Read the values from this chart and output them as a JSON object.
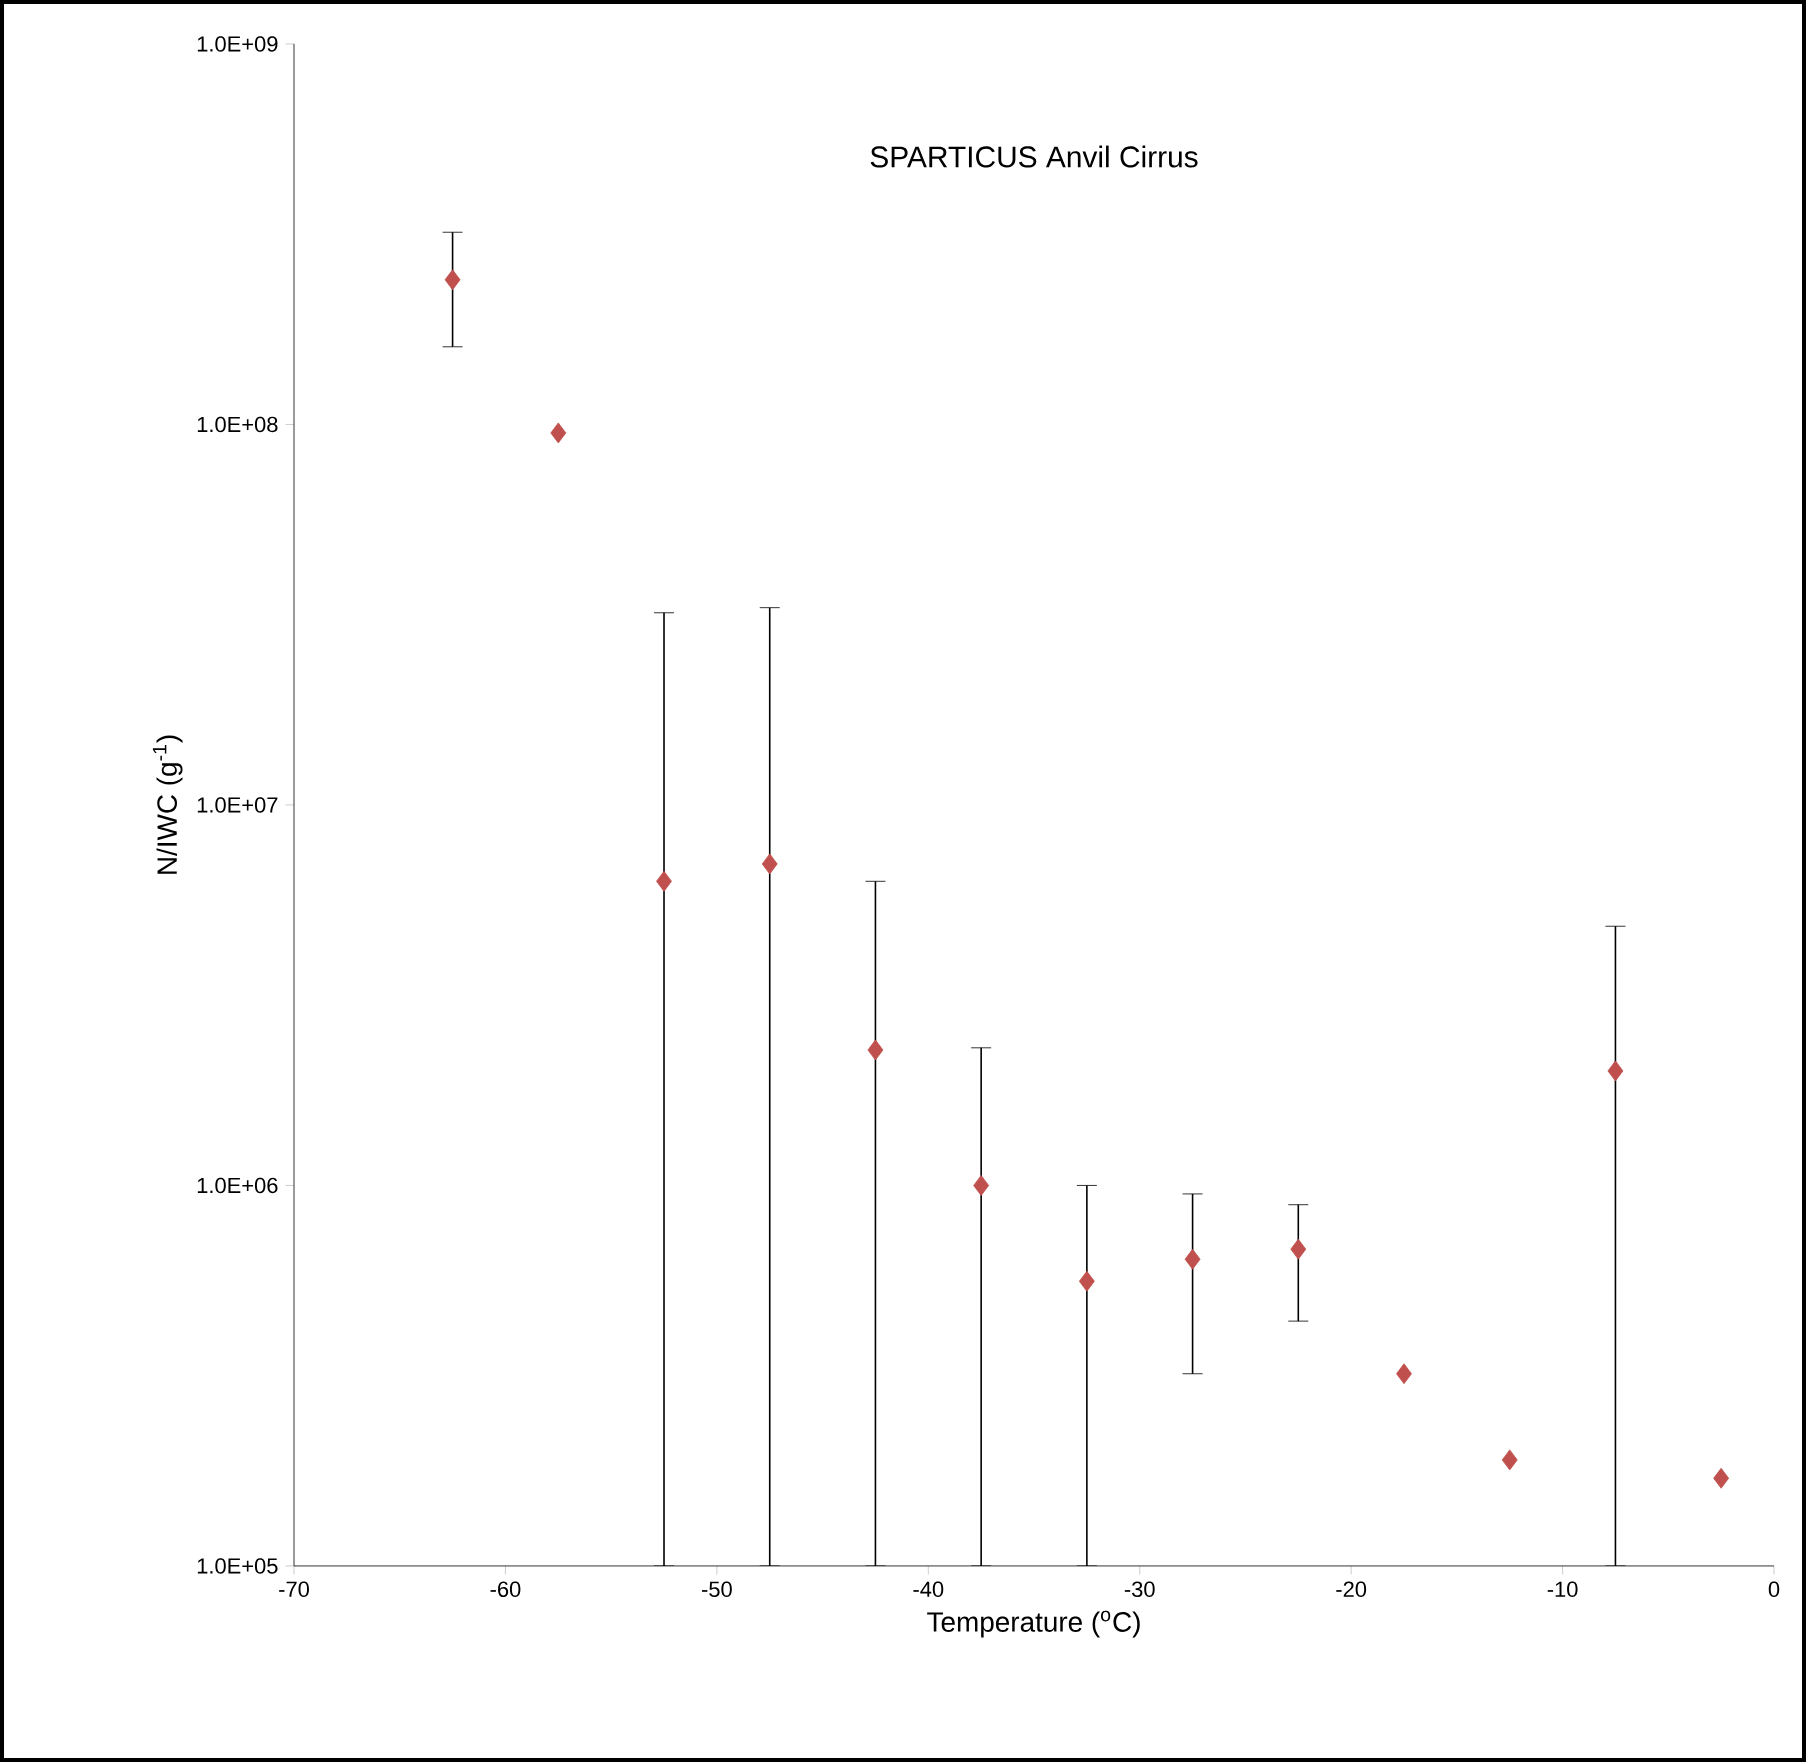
{
  "chart_data": {
    "type": "scatter",
    "title": "SPARTICUS Anvil Cirrus",
    "xlabel": "Temperature ($^{o}$C)",
    "ylabel": "N/IWC (g$^{-1}$)",
    "x": [
      -62.5,
      -57.5,
      -52.5,
      -47.5,
      -42.5,
      -37.5,
      -32.5,
      -27.5,
      -22.5,
      -17.5,
      -12.5,
      -7.5,
      -2.5
    ],
    "values": [
      240000000,
      95000000,
      6300000,
      7000000,
      2270000,
      1000000,
      560000,
      640000,
      680000,
      320000,
      190000,
      2000000,
      170000
    ],
    "errors": [
      [
        160000000,
        320000000
      ],
      null,
      [
        100000,
        32000000
      ],
      [
        100000,
        33000000
      ],
      [
        100000,
        6300000
      ],
      [
        100000,
        2300000
      ],
      [
        100000,
        1000000
      ],
      [
        320000,
        950000
      ],
      [
        440000,
        890000
      ],
      null,
      null,
      [
        100000,
        4800000
      ],
      null
    ],
    "color": "#c0504d",
    "marker": "diamond",
    "log": "y",
    "xlim": [
      -70,
      0
    ],
    "ylim": [
      100000,
      1000000000
    ],
    "xticks": [
      -70,
      -60,
      -50,
      -40,
      -30,
      -20,
      -10,
      0
    ],
    "yticks": [
      {
        "value": 100000,
        "label": "1.0E+05"
      },
      {
        "value": 1000000,
        "label": "1.0E+06"
      },
      {
        "value": 10000000,
        "label": "1.0E+07"
      },
      {
        "value": 100000000,
        "label": "1.0E+08"
      },
      {
        "value": 1000000000,
        "label": "1.0E+09"
      }
    ]
  }
}
